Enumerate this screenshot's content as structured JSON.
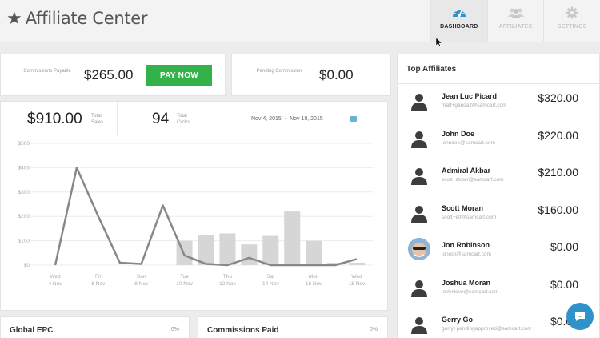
{
  "header": {
    "title": "Affiliate Center",
    "tabs": [
      {
        "label": "DASHBOARD",
        "icon": "gauge-icon",
        "active": true
      },
      {
        "label": "AFFILIATES",
        "icon": "users-icon",
        "active": false
      },
      {
        "label": "SETTINGS",
        "icon": "gear-icon",
        "active": false
      }
    ]
  },
  "payable": {
    "label": "Commissions Payable",
    "amount": "$265.00",
    "button": "PAY NOW"
  },
  "pending": {
    "label": "Pending Commission",
    "amount": "$0.00"
  },
  "stats": {
    "sales_amount": "$910.00",
    "sales_label": "Total Sales",
    "clicks_count": "94",
    "clicks_label": "Total Clicks",
    "date_from": "Nov 4, 2015",
    "date_sep": "-",
    "date_to": "Nov 18, 2015"
  },
  "chart_data": {
    "type": "bar",
    "yticks": [
      "$500",
      "$400",
      "$300",
      "$200",
      "$100",
      "$0"
    ],
    "ylim": [
      0,
      500
    ],
    "categories": [
      {
        "day": "Wed",
        "date": "4 Nov"
      },
      {
        "day": "Fri",
        "date": "6 Nov"
      },
      {
        "day": "Sun",
        "date": "8 Nov"
      },
      {
        "day": "Tue",
        "date": "10 Nov"
      },
      {
        "day": "Thu",
        "date": "12 Nov"
      },
      {
        "day": "Sat",
        "date": "14 Nov"
      },
      {
        "day": "Mon",
        "date": "16 Nov"
      },
      {
        "day": "Wed",
        "date": "18 Nov"
      }
    ],
    "x": [
      4,
      5,
      6,
      7,
      8,
      9,
      10,
      11,
      12,
      13,
      14,
      15,
      16,
      17,
      18
    ],
    "bars": [
      0,
      0,
      0,
      0,
      0,
      0,
      100,
      125,
      130,
      85,
      120,
      220,
      100,
      10,
      10
    ],
    "line": [
      0,
      400,
      200,
      10,
      5,
      245,
      40,
      5,
      0,
      30,
      0,
      0,
      0,
      0,
      25
    ],
    "grid": true
  },
  "bottom": [
    {
      "title": "Global EPC",
      "pct": "0%"
    },
    {
      "title": "Commissions Paid",
      "pct": "0%"
    }
  ],
  "affiliates": {
    "title": "Top Affiliates",
    "items": [
      {
        "name": "Jean Luc Picard",
        "email": "matt+gandalf@samcart.com",
        "amount": "$320.00"
      },
      {
        "name": "John Doe",
        "email": "jonndoe@samcart.com",
        "amount": "$220.00"
      },
      {
        "name": "Admiral Akbar",
        "email": "scott+akbar@samcart.com",
        "amount": "$210.00"
      },
      {
        "name": "Scott Moran",
        "email": "scott+elf@samcart.com",
        "amount": "$160.00"
      },
      {
        "name": "Jon Robinson",
        "email": "jonrob@samcart.com",
        "amount": "$0.00"
      },
      {
        "name": "Joshua Moran",
        "email": "josh+love@samcart.com",
        "amount": "$0.00"
      },
      {
        "name": "Gerry Go",
        "email": "gerry+pendingapproved@samcart.com",
        "amount": "$0.00"
      }
    ]
  },
  "colors": {
    "accent": "#33b249",
    "tab_active_icon": "#2f93c9",
    "chat": "#2f93c9",
    "bar": "#d6d6d6",
    "line": "#888888"
  }
}
